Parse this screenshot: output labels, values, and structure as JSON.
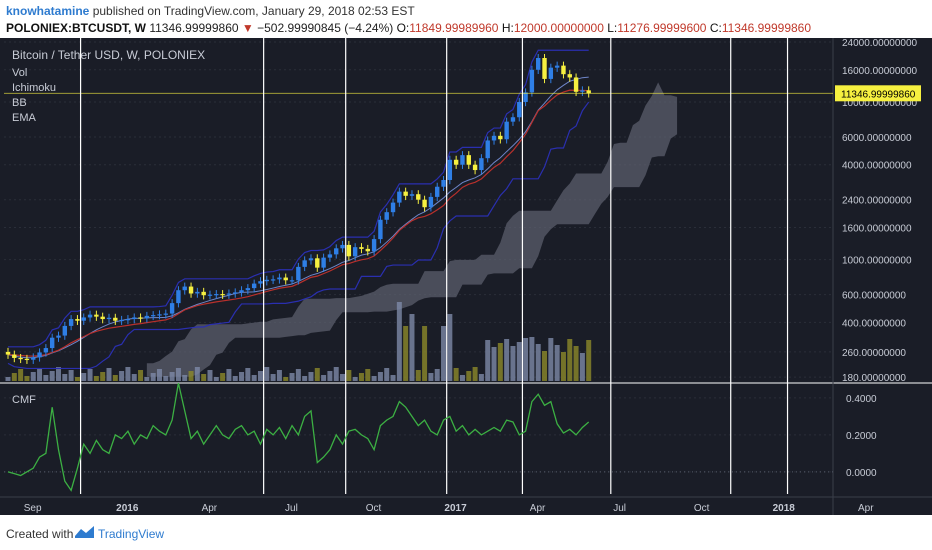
{
  "header": {
    "author": "knowhatamine",
    "published": " published on TradingView.com, January 29, 2018 02:53 EST",
    "symbol": "POLONIEX:BTCUSDT, W",
    "last": "11346.99999860",
    "change_arrow": "▼",
    "change": "−502.99990845 (−4.24%)",
    "o_label": "O:",
    "o_val": "11849.99989960",
    "h_label": "H:",
    "h_val": "12000.00000000",
    "l_label": "L:",
    "l_val": "11276.99999600",
    "c_label": "C:",
    "c_val": "11346.99999860"
  },
  "legend": {
    "title": "Bitcoin / Tether USD, W, POLONIEX",
    "indicators": [
      "Vol",
      "Ichimoku",
      "BB",
      "EMA"
    ],
    "cmf": "CMF"
  },
  "footer": {
    "created": "Created with",
    "brand": "TradingView"
  },
  "colors": {
    "bg": "#1a1d27",
    "grid": "#2a2e39",
    "up": "#2f7fe6",
    "down": "#f6f040",
    "cmf": "#3cb043",
    "bb": "#2a2fb0",
    "ema": "#b8302c",
    "cloud": "#5f6270",
    "vol_up": "#7d8aa8",
    "vol_down": "#8c8a2a",
    "price_tag": "#f6f040"
  },
  "chart_data": [
    {
      "type": "candlestick",
      "title": "Bitcoin / Tether USD, W, POLONIEX",
      "scale": "log",
      "ylim": [
        170,
        24000
      ],
      "y_ticks": [
        "24000.00000000",
        "16000.00000000",
        "10000.00000000",
        "6000.00000000",
        "4000.00000000",
        "2400.00000000",
        "1600.00000000",
        "1000.00000000",
        "600.00000000",
        "400.00000000",
        "260.00000000",
        "180.00000000"
      ],
      "x_ticks": [
        "Sep",
        "2016",
        "Apr",
        "Jul",
        "Oct",
        "2017",
        "Apr",
        "Jul",
        "Oct",
        "2018",
        "Apr"
      ],
      "last_price": "11346.99999860",
      "weekly_close": [
        250,
        238,
        235,
        232,
        240,
        258,
        275,
        320,
        330,
        380,
        420,
        410,
        430,
        448,
        435,
        420,
        428,
        410,
        415,
        420,
        430,
        425,
        440,
        445,
        450,
        455,
        530,
        640,
        675,
        610,
        625,
        595,
        600,
        605,
        600,
        610,
        620,
        640,
        660,
        705,
        730,
        745,
        750,
        770,
        740,
        740,
        900,
        990,
        1020,
        890,
        1030,
        1080,
        1180,
        1240,
        1050,
        1200,
        1170,
        1130,
        1350,
        1790,
        2000,
        2300,
        2700,
        2540,
        2600,
        2400,
        2150,
        2500,
        2900,
        3200,
        4300,
        4000,
        4600,
        4000,
        3700,
        4400,
        5700,
        6100,
        5800,
        7500,
        8000,
        10000,
        11500,
        16000,
        19000,
        14000,
        16500,
        17000,
        15000,
        14300,
        11600,
        11850,
        11347
      ],
      "cmf": [
        0.0,
        -0.01,
        -0.02,
        0.0,
        0.02,
        0.08,
        0.1,
        0.35,
        0.12,
        -0.05,
        -0.1,
        0.02,
        0.15,
        0.1,
        0.17,
        0.12,
        0.1,
        0.2,
        0.18,
        0.22,
        0.15,
        0.2,
        0.18,
        0.25,
        0.22,
        0.2,
        0.28,
        0.48,
        0.33,
        0.18,
        0.22,
        0.15,
        0.2,
        0.25,
        0.2,
        0.18,
        0.23,
        0.25,
        0.2,
        0.22,
        0.15,
        0.23,
        0.2,
        0.24,
        0.18,
        0.25,
        0.2,
        0.3,
        0.33,
        0.05,
        0.08,
        0.12,
        0.2,
        0.15,
        0.22,
        0.23,
        0.2,
        0.18,
        0.12,
        0.25,
        0.28,
        0.3,
        0.38,
        0.35,
        0.3,
        0.25,
        0.28,
        0.22,
        0.2,
        0.28,
        0.3,
        0.22,
        0.25,
        0.2,
        0.23,
        0.2,
        0.22,
        0.24,
        0.22,
        0.28,
        0.27,
        0.2,
        0.22,
        0.38,
        0.42,
        0.36,
        0.38,
        0.26,
        0.21,
        0.23,
        0.2,
        0.24,
        0.27
      ]
    },
    {
      "type": "line",
      "title": "CMF",
      "ylim": [
        -0.12,
        0.47
      ],
      "y_ticks": [
        "0.4000",
        "0.2000",
        "0.0000"
      ]
    }
  ]
}
